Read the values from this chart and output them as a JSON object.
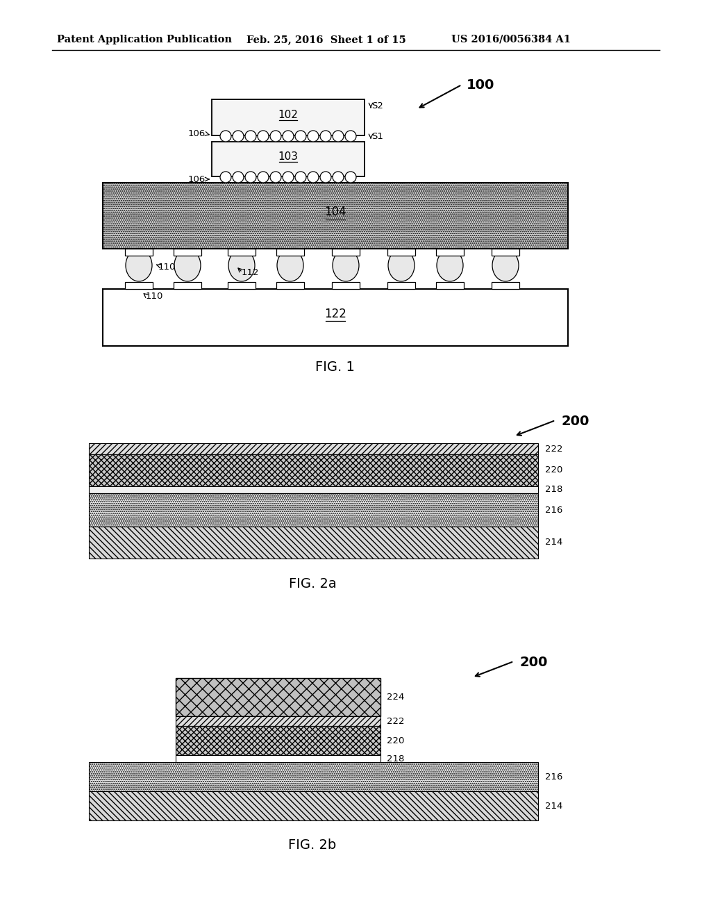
{
  "bg_color": "#ffffff",
  "header_left": "Patent Application Publication",
  "header_mid": "Feb. 25, 2016  Sheet 1 of 15",
  "header_right": "US 2016/0056384 A1",
  "fig1_label": "FIG. 1",
  "fig2a_label": "FIG. 2a",
  "fig2b_label": "FIG. 2b",
  "ref_100": "100",
  "ref_200a": "200",
  "ref_200b": "200"
}
